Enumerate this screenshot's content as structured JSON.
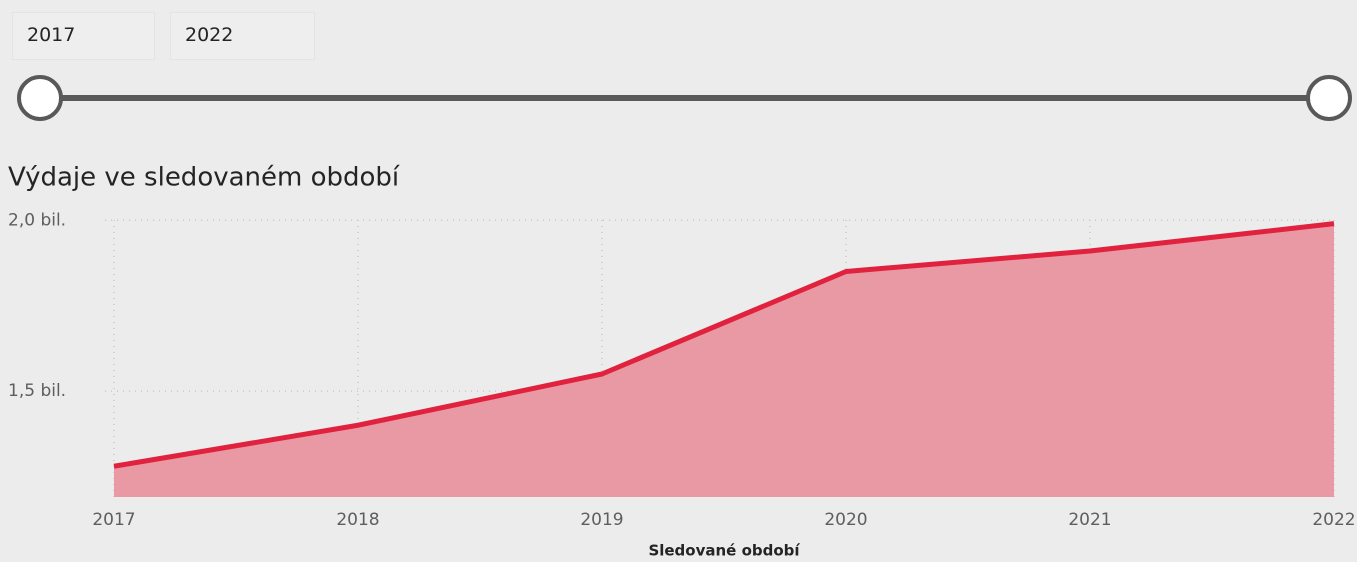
{
  "slicer": {
    "start": "2017",
    "end": "2022"
  },
  "chart_data": {
    "type": "area",
    "title": "Výdaje ve sledovaném období",
    "x_label": "Sledované období",
    "categories": [
      "2017",
      "2018",
      "2019",
      "2020",
      "2021",
      "2022"
    ],
    "series": [
      {
        "name": "Výdaje",
        "color": "#e0223f",
        "fill": "#e899a3",
        "values": [
          1.28,
          1.4,
          1.55,
          1.85,
          1.91,
          1.99
        ]
      }
    ],
    "ylim": [
      1.19,
      2.03
    ],
    "yticks": [
      {
        "value": 1.5,
        "label": "1,5 bil."
      },
      {
        "value": 2,
        "label": "2,0 bil."
      }
    ],
    "grid": true
  }
}
